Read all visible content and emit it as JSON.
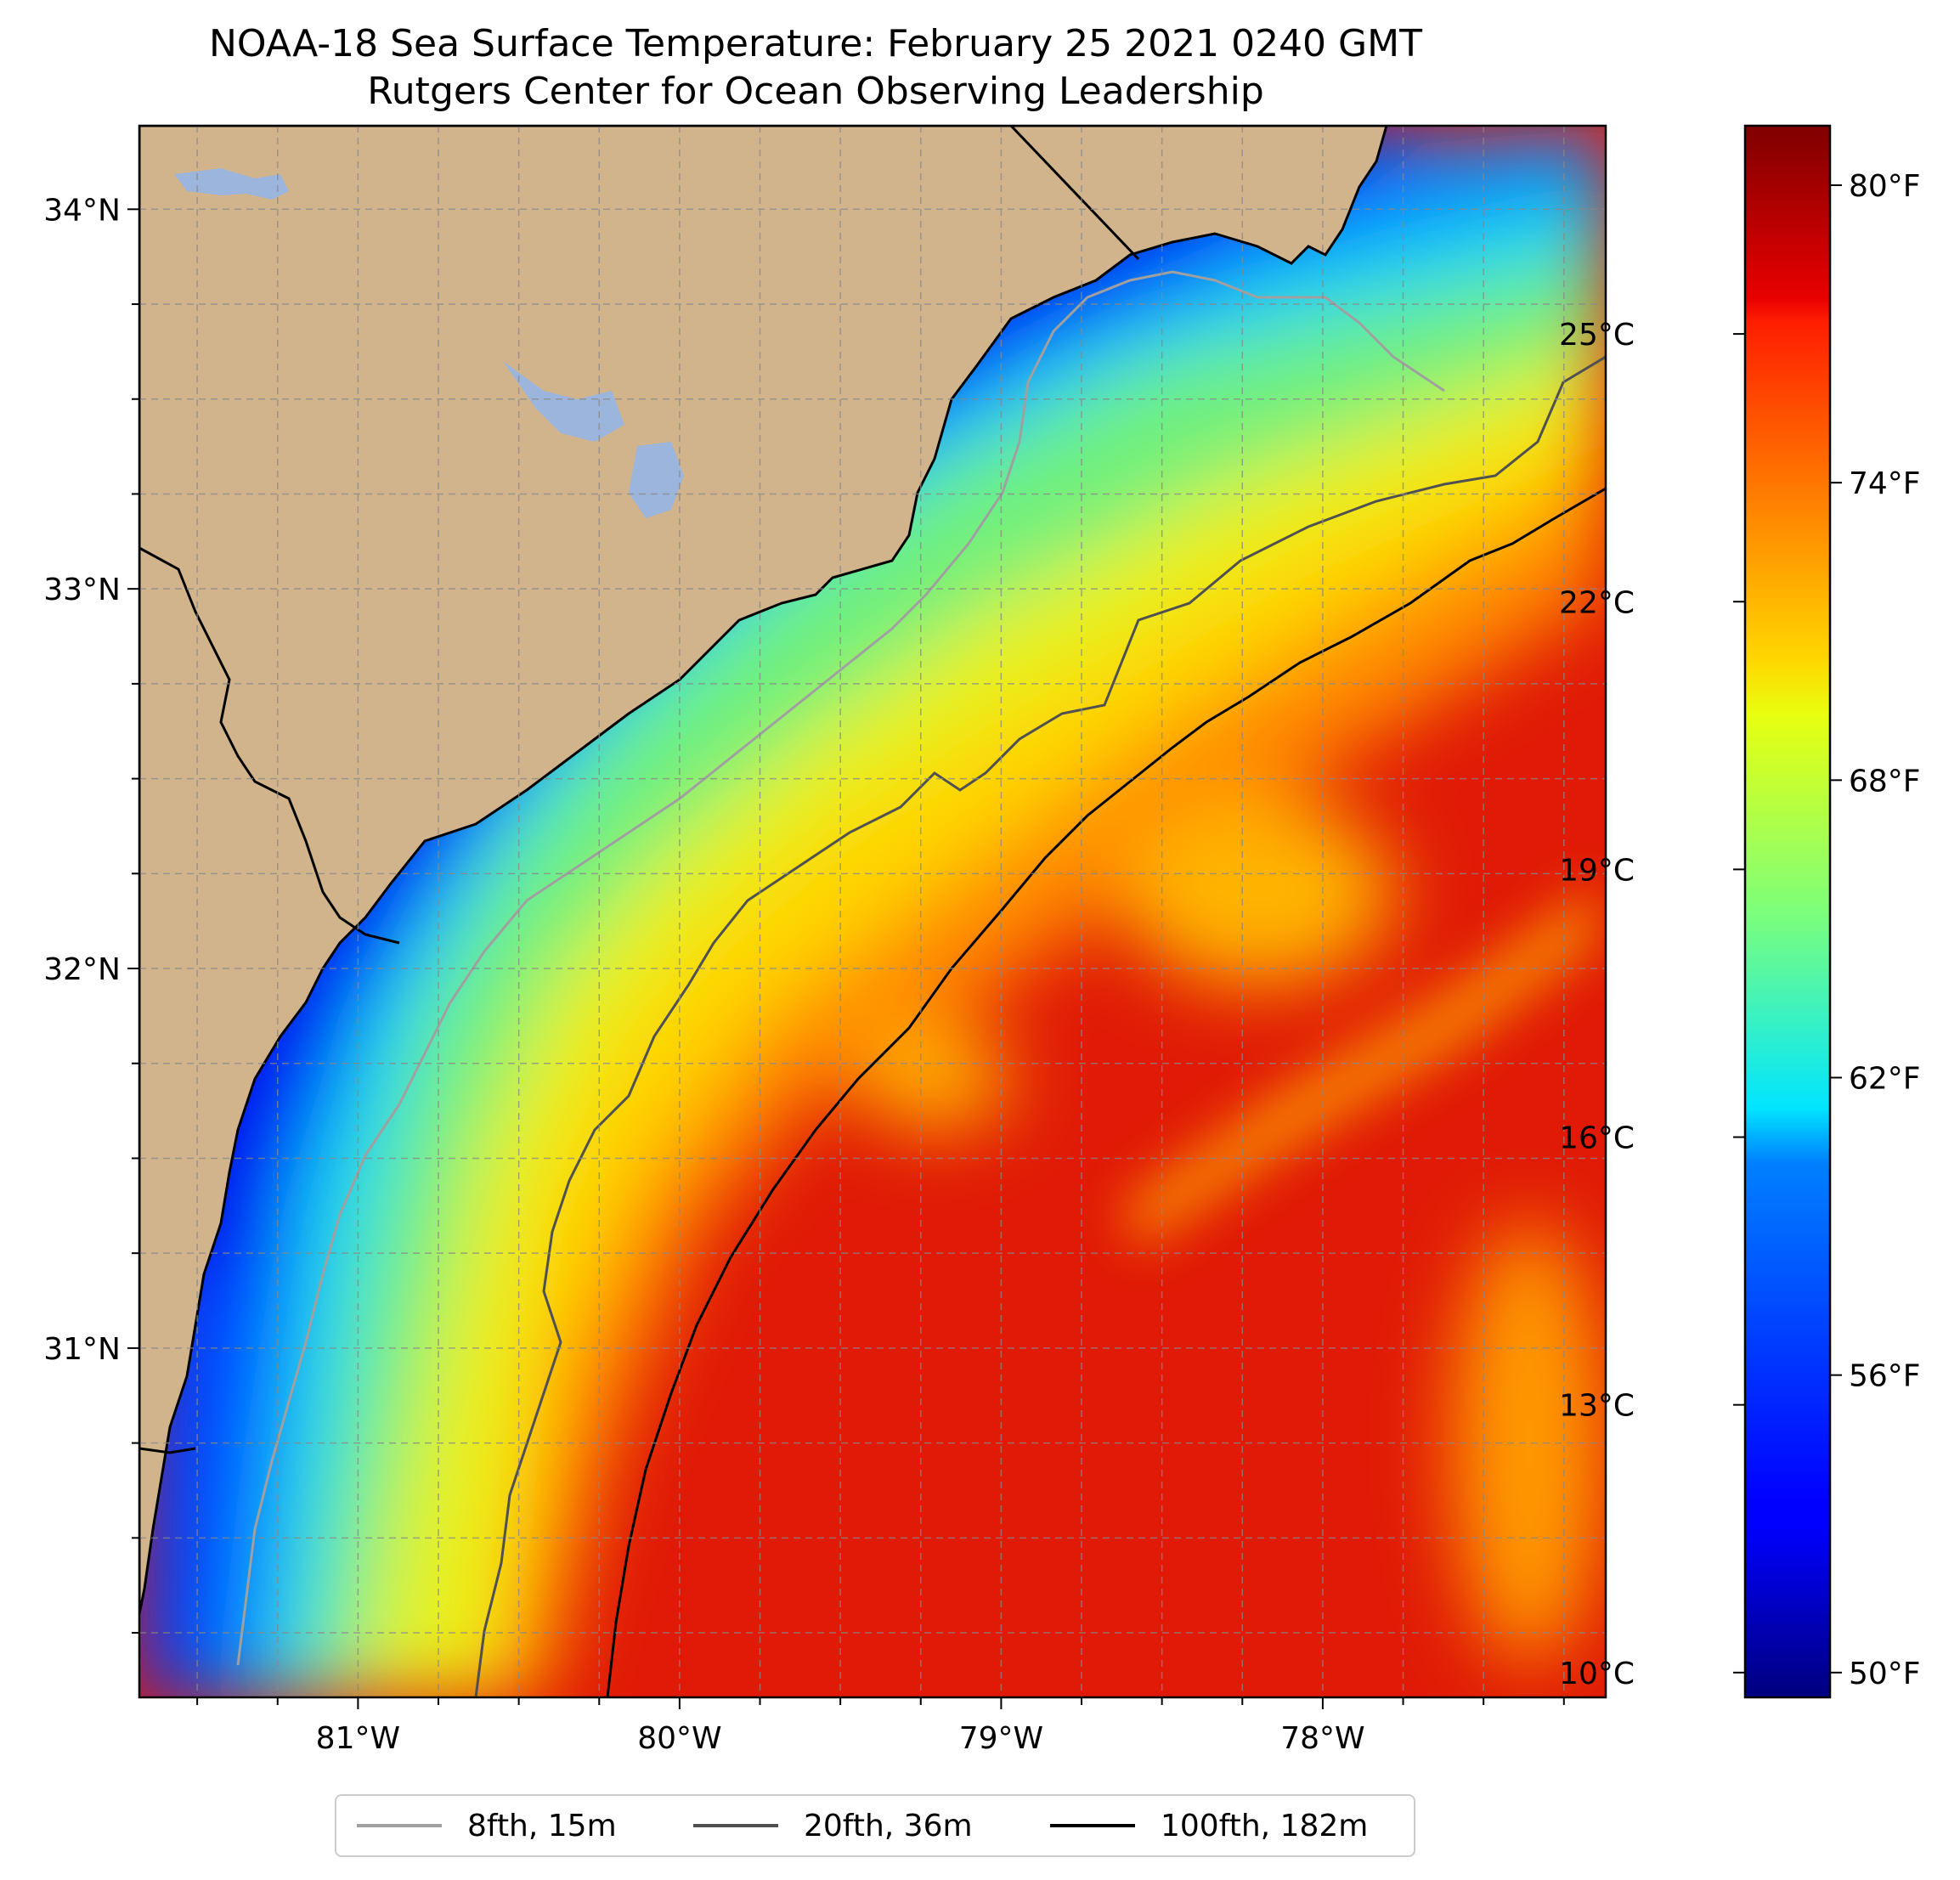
{
  "title_line1": "NOAA-18 Sea Surface Temperature: February 25 2021 0240 GMT",
  "title_line2": "Rutgers Center for Ocean Observing Leadership",
  "map": {
    "lon_range": [
      -81.68,
      -77.12
    ],
    "lat_range": [
      30.08,
      34.22
    ],
    "lon_ticks": [
      {
        "value": -81,
        "label": "81°W"
      },
      {
        "value": -80,
        "label": "80°W"
      },
      {
        "value": -79,
        "label": "79°W"
      },
      {
        "value": -78,
        "label": "78°W"
      }
    ],
    "lat_ticks": [
      {
        "value": 31,
        "label": "31°N"
      },
      {
        "value": 32,
        "label": "32°N"
      },
      {
        "value": 33,
        "label": "33°N"
      },
      {
        "value": 34,
        "label": "34°N"
      }
    ],
    "grid": true,
    "land_color": "#D2B48C",
    "lake_color": "#9BB5DC",
    "colormap": "jet"
  },
  "colorbar": {
    "range_f": [
      49.5,
      81.2
    ],
    "celsius_ticks": [
      {
        "value": 10,
        "label": "10°C"
      },
      {
        "value": 13,
        "label": "13°C"
      },
      {
        "value": 16,
        "label": "16°C"
      },
      {
        "value": 19,
        "label": "19°C"
      },
      {
        "value": 22,
        "label": "22°C"
      },
      {
        "value": 25,
        "label": "25°C"
      }
    ],
    "fahrenheit_ticks": [
      {
        "value": 50,
        "label": "50°F"
      },
      {
        "value": 56,
        "label": "56°F"
      },
      {
        "value": 62,
        "label": "62°F"
      },
      {
        "value": 68,
        "label": "68°F"
      },
      {
        "value": 74,
        "label": "74°F"
      },
      {
        "value": 80,
        "label": "80°F"
      }
    ]
  },
  "legend": [
    {
      "label": "8fth, 15m",
      "color": "#a0a0a0"
    },
    {
      "label": "20fth, 36m",
      "color": "#505050"
    },
    {
      "label": "100fth, 182m",
      "color": "#000000"
    }
  ]
}
